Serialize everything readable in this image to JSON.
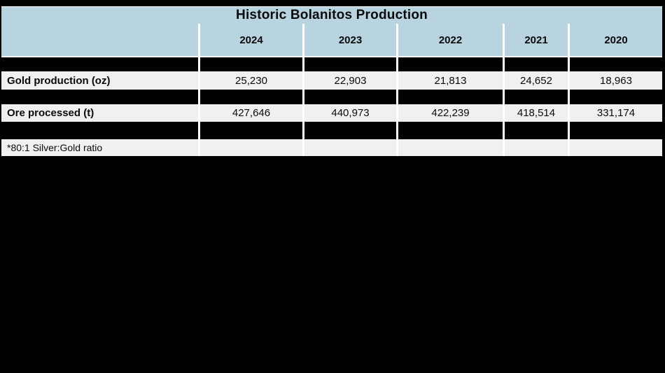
{
  "table": {
    "title": "Historic Bolanitos Production",
    "years": [
      "2024",
      "2023",
      "2022",
      "2021",
      "2020"
    ],
    "rows": [
      {
        "label": "Gold production (oz)",
        "values": [
          "25,230",
          "22,903",
          "21,813",
          "24,652",
          "18,963"
        ]
      },
      {
        "label": "Ore processed (t)",
        "values": [
          "427,646",
          "440,973",
          "422,239",
          "418,514",
          "331,174"
        ]
      }
    ],
    "footnote": "*80:1 Silver:Gold ratio",
    "colors": {
      "header_blue": "#b9d4e1",
      "row_gray": "#f0f0ee",
      "page_background": "#000000",
      "separator_white": "#ffffff",
      "text": "#0a0a0a"
    }
  },
  "chart_data": {
    "type": "table",
    "title": "Historic Bolanitos Production",
    "categories": [
      "2024",
      "2023",
      "2022",
      "2021",
      "2020"
    ],
    "series": [
      {
        "name": "Gold production (oz)",
        "values": [
          25230,
          22903,
          21813,
          24652,
          18963
        ]
      },
      {
        "name": "Ore processed (t)",
        "values": [
          427646,
          440973,
          422239,
          418514,
          331174
        ]
      }
    ],
    "annotations": [
      "*80:1 Silver:Gold ratio"
    ],
    "layout_hints": {
      "redacted_black_rows_between_data_rows": 3,
      "header_fill": "#b9d4e1",
      "data_row_fill": "#f0f0ee",
      "background": "#000000"
    }
  }
}
